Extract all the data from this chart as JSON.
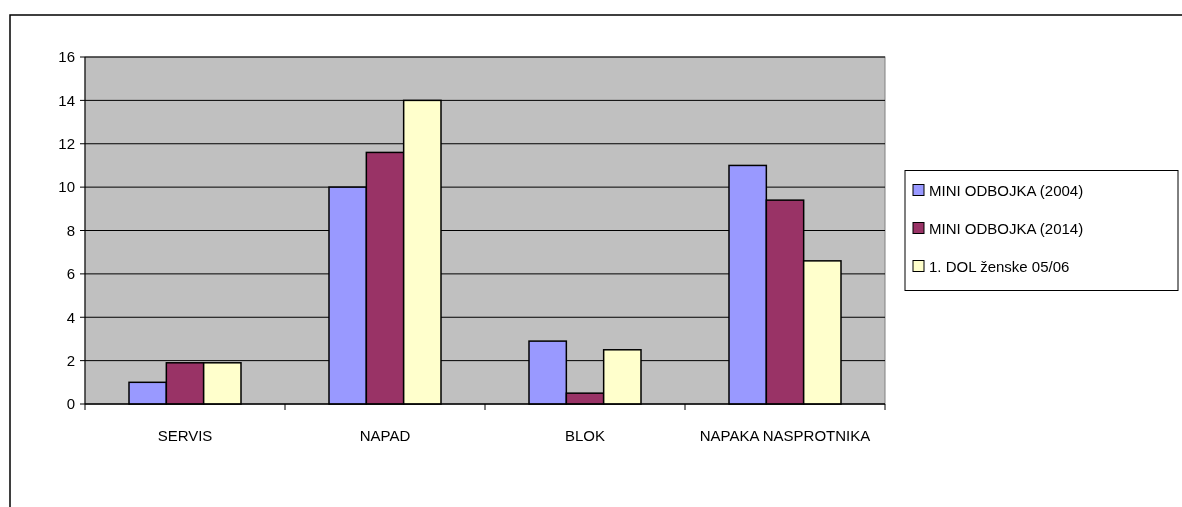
{
  "chart_data": {
    "type": "bar",
    "categories": [
      "SERVIS",
      "NAPAD",
      "BLOK",
      "NAPAKA NASPROTNIKA"
    ],
    "series": [
      {
        "name": "MINI ODBOJKA (2004)",
        "color": "#9999ff",
        "values": [
          1,
          10,
          2.9,
          11
        ]
      },
      {
        "name": "MINI ODBOJKA (2014)",
        "color": "#993366",
        "values": [
          1.9,
          11.6,
          0.5,
          9.4
        ]
      },
      {
        "name": "1. DOL ženske 05/06",
        "color": "#ffffcc",
        "values": [
          1.9,
          14,
          2.5,
          6.6
        ]
      }
    ],
    "ylim": [
      0,
      16
    ],
    "yticks": [
      0,
      2,
      4,
      6,
      8,
      10,
      12,
      14,
      16
    ],
    "grid": "y",
    "legend": "right"
  }
}
